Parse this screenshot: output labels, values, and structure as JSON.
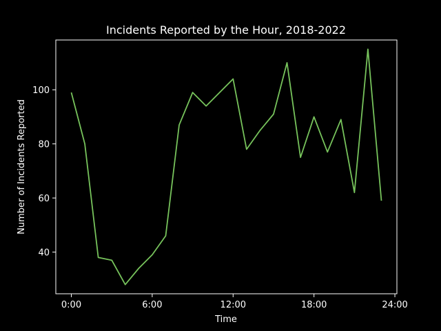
{
  "chart_data": {
    "type": "line",
    "title": "Incidents Reported by the Hour, 2018-2022",
    "xlabel": "Time",
    "ylabel": "Number of Incidents Reported",
    "x_ticks": [
      {
        "value": 0,
        "label": "0:00"
      },
      {
        "value": 6,
        "label": "6:00"
      },
      {
        "value": 12,
        "label": "12:00"
      },
      {
        "value": 18,
        "label": "18:00"
      },
      {
        "value": 24,
        "label": "24:00"
      }
    ],
    "y_ticks": [
      40,
      60,
      80,
      100
    ],
    "xlim": [
      -1.15,
      24.15
    ],
    "ylim": [
      24.6,
      118.4
    ],
    "grid": false,
    "colors": {
      "background": "#000000",
      "line": "#77c35c",
      "axes": "#ffffff"
    },
    "series": [
      {
        "x": [
          0,
          1,
          2,
          3,
          4,
          5,
          6,
          7,
          8,
          9,
          10,
          11,
          12,
          13,
          14,
          15,
          16,
          17,
          18,
          19,
          20,
          21,
          22,
          23
        ],
        "values": [
          99,
          80,
          38,
          37,
          28,
          34,
          39,
          46,
          87,
          99,
          94,
          99,
          104,
          78,
          85,
          91,
          110,
          75,
          90,
          77,
          89,
          62,
          115,
          59
        ]
      }
    ]
  }
}
